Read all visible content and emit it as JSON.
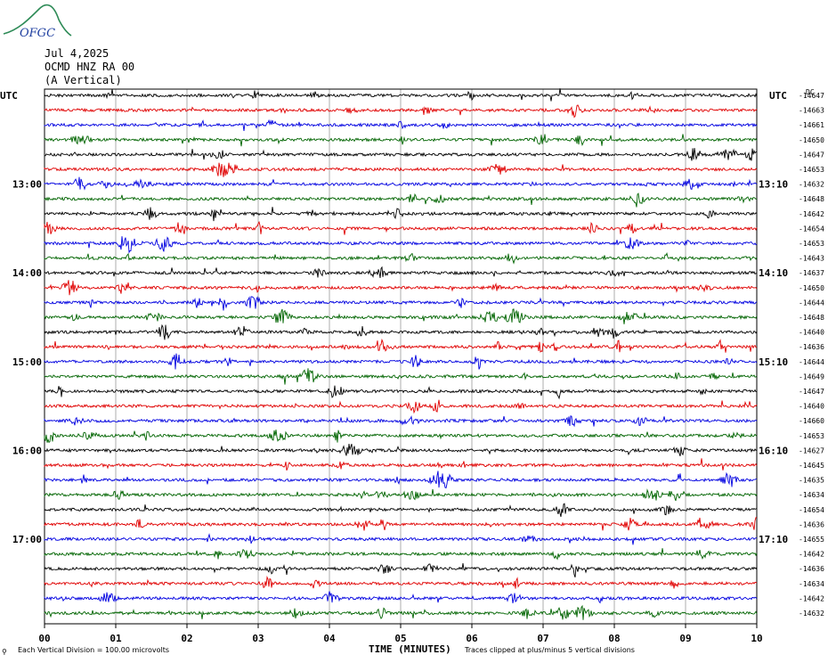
{
  "header": {
    "logo_text": "OFGC",
    "date": "Jul 4,2025",
    "station": "OCMD HNZ RA 00",
    "component": "(A Vertical)"
  },
  "chart_data": {
    "type": "line",
    "title": "",
    "xlabel": "TIME (MINUTES)",
    "ylabel": "",
    "x_ticks": [
      "00",
      "01",
      "02",
      "03",
      "04",
      "05",
      "06",
      "07",
      "08",
      "09",
      "10"
    ],
    "xlim": [
      0,
      10
    ],
    "left_axis_label": "UTC",
    "right_axis_label": "UTC",
    "right_top_label": "DC",
    "left_time_labels": [
      {
        "row": 6,
        "label": "13:00"
      },
      {
        "row": 12,
        "label": "14:00"
      },
      {
        "row": 18,
        "label": "15:00"
      },
      {
        "row": 24,
        "label": "16:00"
      },
      {
        "row": 30,
        "label": "17:00"
      }
    ],
    "right_time_labels": [
      {
        "row": 6,
        "label": "13:10"
      },
      {
        "row": 12,
        "label": "14:10"
      },
      {
        "row": 18,
        "label": "15:10"
      },
      {
        "row": 24,
        "label": "16:10"
      },
      {
        "row": 30,
        "label": "17:10"
      }
    ],
    "trace_colors": [
      "#000000",
      "#e00000",
      "#0000e0",
      "#006400"
    ],
    "row_dc_values": [
      -14647,
      -14663,
      -14661,
      -14650,
      -14647,
      -14653,
      -14632,
      -14648,
      -14642,
      -14654,
      -14653,
      -14643,
      -14637,
      -14650,
      -14644,
      -14648,
      -14640,
      -14636,
      -14644,
      -14649,
      -14647,
      -14640,
      -14660,
      -14653,
      -14627,
      -14645,
      -14635,
      -14634,
      -14654,
      -14636,
      -14655,
      -14642,
      -14636,
      -14634,
      -14642,
      -14632
    ],
    "scale_note": "Each Vertical Division =  100.00 microvolts",
    "clip_note": "Traces clipped at plus/minus 5 vertical divisions"
  }
}
